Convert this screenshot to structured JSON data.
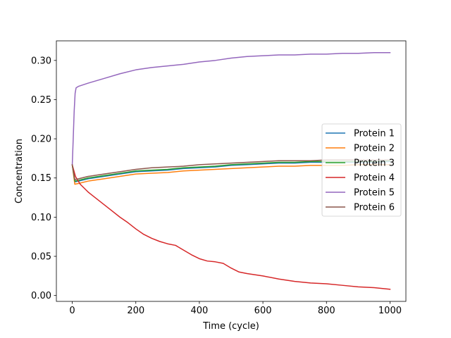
{
  "chart_data": {
    "type": "line",
    "title": "",
    "xlabel": "Time (cycle)",
    "ylabel": "Concentration",
    "xlim": [
      -50,
      1050
    ],
    "ylim": [
      -0.0075,
      0.325
    ],
    "xticks": [
      0,
      200,
      400,
      600,
      800,
      1000
    ],
    "yticks": [
      0.0,
      0.05,
      0.1,
      0.15,
      0.2,
      0.25,
      0.3
    ],
    "ytick_labels": [
      "0.00",
      "0.05",
      "0.10",
      "0.15",
      "0.20",
      "0.25",
      "0.30"
    ],
    "grid": false,
    "legend_position": "center-right",
    "series": [
      {
        "name": "Protein 1",
        "color": "#1f77b4",
        "x": [
          0,
          8,
          20,
          50,
          100,
          150,
          200,
          250,
          300,
          350,
          400,
          450,
          500,
          550,
          600,
          650,
          700,
          750,
          800,
          850,
          900,
          950,
          1000
        ],
        "y": [
          0.1667,
          0.145,
          0.146,
          0.149,
          0.152,
          0.155,
          0.158,
          0.159,
          0.16,
          0.162,
          0.163,
          0.164,
          0.166,
          0.167,
          0.168,
          0.169,
          0.169,
          0.17,
          0.17,
          0.17,
          0.17,
          0.17,
          0.171
        ]
      },
      {
        "name": "Protein 2",
        "color": "#ff7f0e",
        "x": [
          0,
          8,
          20,
          50,
          100,
          150,
          200,
          250,
          300,
          350,
          400,
          450,
          500,
          550,
          600,
          650,
          700,
          750,
          800,
          850,
          900,
          950,
          1000
        ],
        "y": [
          0.1667,
          0.142,
          0.143,
          0.146,
          0.149,
          0.152,
          0.155,
          0.156,
          0.157,
          0.159,
          0.16,
          0.161,
          0.162,
          0.163,
          0.164,
          0.165,
          0.165,
          0.166,
          0.166,
          0.166,
          0.167,
          0.167,
          0.167
        ]
      },
      {
        "name": "Protein 3",
        "color": "#2ca02c",
        "x": [
          0,
          8,
          20,
          50,
          100,
          150,
          200,
          250,
          300,
          350,
          400,
          450,
          500,
          550,
          600,
          650,
          700,
          750,
          800,
          850,
          900,
          950,
          1000
        ],
        "y": [
          0.1667,
          0.146,
          0.147,
          0.15,
          0.153,
          0.156,
          0.159,
          0.16,
          0.161,
          0.163,
          0.164,
          0.165,
          0.167,
          0.168,
          0.169,
          0.17,
          0.17,
          0.171,
          0.171,
          0.171,
          0.171,
          0.171,
          0.172
        ]
      },
      {
        "name": "Protein 4",
        "color": "#d62728",
        "x": [
          0,
          10,
          25,
          50,
          75,
          100,
          125,
          150,
          175,
          200,
          225,
          250,
          275,
          300,
          325,
          350,
          375,
          400,
          425,
          450,
          475,
          500,
          525,
          550,
          600,
          650,
          700,
          750,
          800,
          850,
          900,
          950,
          1000
        ],
        "y": [
          0.1667,
          0.152,
          0.142,
          0.132,
          0.124,
          0.116,
          0.108,
          0.1,
          0.093,
          0.085,
          0.078,
          0.073,
          0.069,
          0.066,
          0.064,
          0.058,
          0.052,
          0.047,
          0.044,
          0.043,
          0.041,
          0.035,
          0.03,
          0.028,
          0.025,
          0.021,
          0.018,
          0.016,
          0.015,
          0.013,
          0.011,
          0.01,
          0.008
        ]
      },
      {
        "name": "Protein 5",
        "color": "#9467bd",
        "x": [
          0,
          3,
          6,
          9,
          12,
          20,
          50,
          100,
          150,
          200,
          250,
          300,
          350,
          400,
          450,
          500,
          550,
          600,
          650,
          700,
          750,
          800,
          850,
          900,
          950,
          1000
        ],
        "y": [
          0.1667,
          0.2,
          0.235,
          0.258,
          0.265,
          0.267,
          0.271,
          0.277,
          0.283,
          0.288,
          0.291,
          0.293,
          0.295,
          0.298,
          0.3,
          0.303,
          0.305,
          0.306,
          0.307,
          0.307,
          0.308,
          0.308,
          0.309,
          0.309,
          0.31,
          0.31
        ]
      },
      {
        "name": "Protein 6",
        "color": "#8c564b",
        "x": [
          0,
          8,
          20,
          50,
          100,
          150,
          200,
          250,
          300,
          350,
          400,
          450,
          500,
          550,
          600,
          650,
          700,
          750,
          800,
          850,
          900,
          950,
          1000
        ],
        "y": [
          0.1667,
          0.148,
          0.149,
          0.152,
          0.155,
          0.158,
          0.161,
          0.163,
          0.164,
          0.165,
          0.167,
          0.168,
          0.169,
          0.17,
          0.171,
          0.172,
          0.172,
          0.172,
          0.173,
          0.173,
          0.173,
          0.173,
          0.173
        ]
      }
    ]
  }
}
